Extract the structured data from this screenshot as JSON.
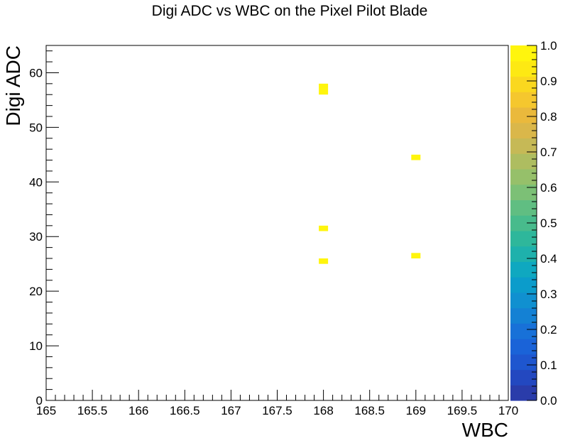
{
  "chart_data": {
    "type": "heatmap",
    "title": "Digi ADC vs WBC on the Pixel Pilot Blade",
    "xlabel": "WBC",
    "ylabel": "Digi ADC",
    "xlim": [
      165,
      170
    ],
    "ylim": [
      0,
      65
    ],
    "x_ticks": [
      "165",
      "165.5",
      "166",
      "166.5",
      "167",
      "167.5",
      "168",
      "168.5",
      "169",
      "169.5",
      "170"
    ],
    "y_ticks": [
      "0",
      "10",
      "20",
      "30",
      "40",
      "50",
      "60"
    ],
    "colorbar": {
      "range": [
        0,
        1
      ],
      "ticks": [
        "0.0",
        "0.1",
        "0.2",
        "0.3",
        "0.4",
        "0.5",
        "0.6",
        "0.7",
        "0.8",
        "0.9",
        "1.0"
      ],
      "colors": [
        "#2a3caa",
        "#2348c0",
        "#1e56cf",
        "#1a63d8",
        "#1871d8",
        "#1481d4",
        "#1090d0",
        "#0b9ccb",
        "#0fa8c0",
        "#1eb1ac",
        "#2eb79b",
        "#48bb8c",
        "#60be82",
        "#7cc076",
        "#96c06a",
        "#aebd60",
        "#c6b956",
        "#dab74a",
        "#eab93c",
        "#f5c72e",
        "#fad81f",
        "#fde913",
        "#fff50d"
      ]
    },
    "grid": false,
    "bin_width": 0.1,
    "bin_height": 1,
    "bins": [
      {
        "x": 168.0,
        "y": 57,
        "value": 1.0
      },
      {
        "x": 168.0,
        "y": 56,
        "value": 1.0
      },
      {
        "x": 168.0,
        "y": 31,
        "value": 1.0
      },
      {
        "x": 168.0,
        "y": 25,
        "value": 1.0
      },
      {
        "x": 169.0,
        "y": 44,
        "value": 1.0
      },
      {
        "x": 169.0,
        "y": 26,
        "value": 1.0
      }
    ]
  }
}
